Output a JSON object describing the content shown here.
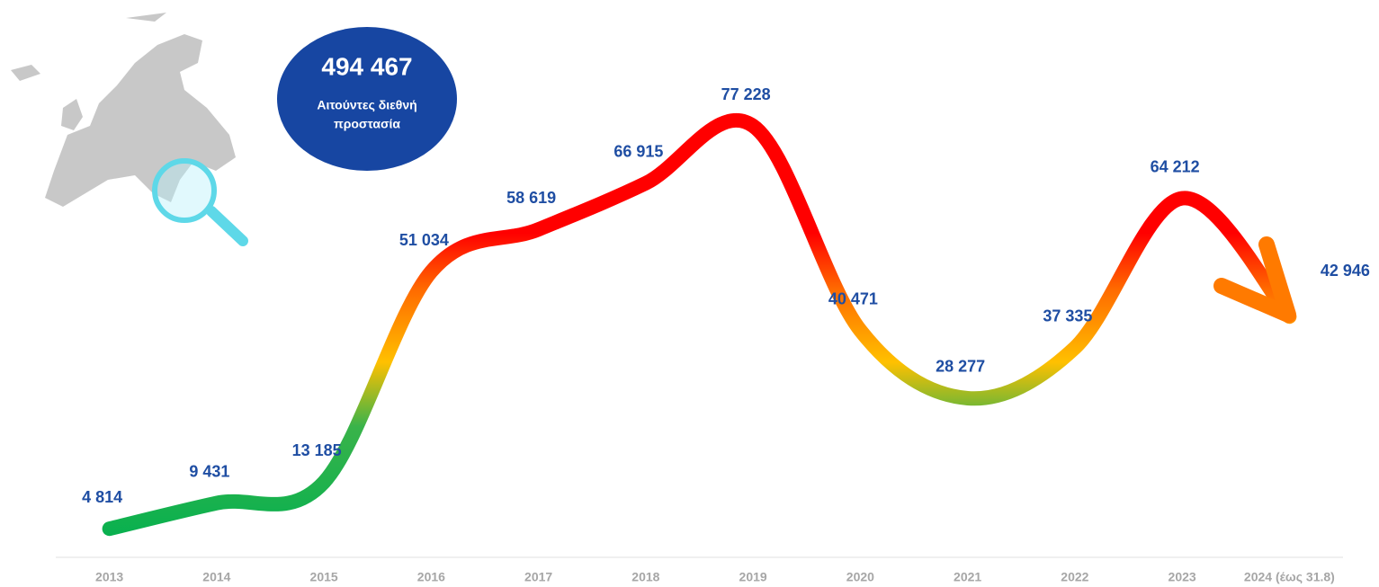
{
  "chart_data": {
    "type": "line",
    "categories": [
      "2013",
      "2014",
      "2015",
      "2016",
      "2017",
      "2018",
      "2019",
      "2020",
      "2021",
      "2022",
      "2023",
      "2024 (έως 31.8)"
    ],
    "series": [
      {
        "name": "Αιτούντες διεθνή προστασία",
        "values": [
          4814,
          9431,
          13185,
          51034,
          58619,
          66915,
          77228,
          40471,
          28277,
          37335,
          64212,
          42946
        ],
        "value_labels": [
          "4 814",
          "9 431",
          "13 185",
          "51 034",
          "58 619",
          "66 915",
          "77 228",
          "40 471",
          "28 277",
          "37 335",
          "64 212",
          "42 946"
        ]
      }
    ],
    "annotation": {
      "total": "494 467",
      "label_lines": [
        "Αιτούντες διεθνή",
        "προστασία"
      ]
    }
  }
}
